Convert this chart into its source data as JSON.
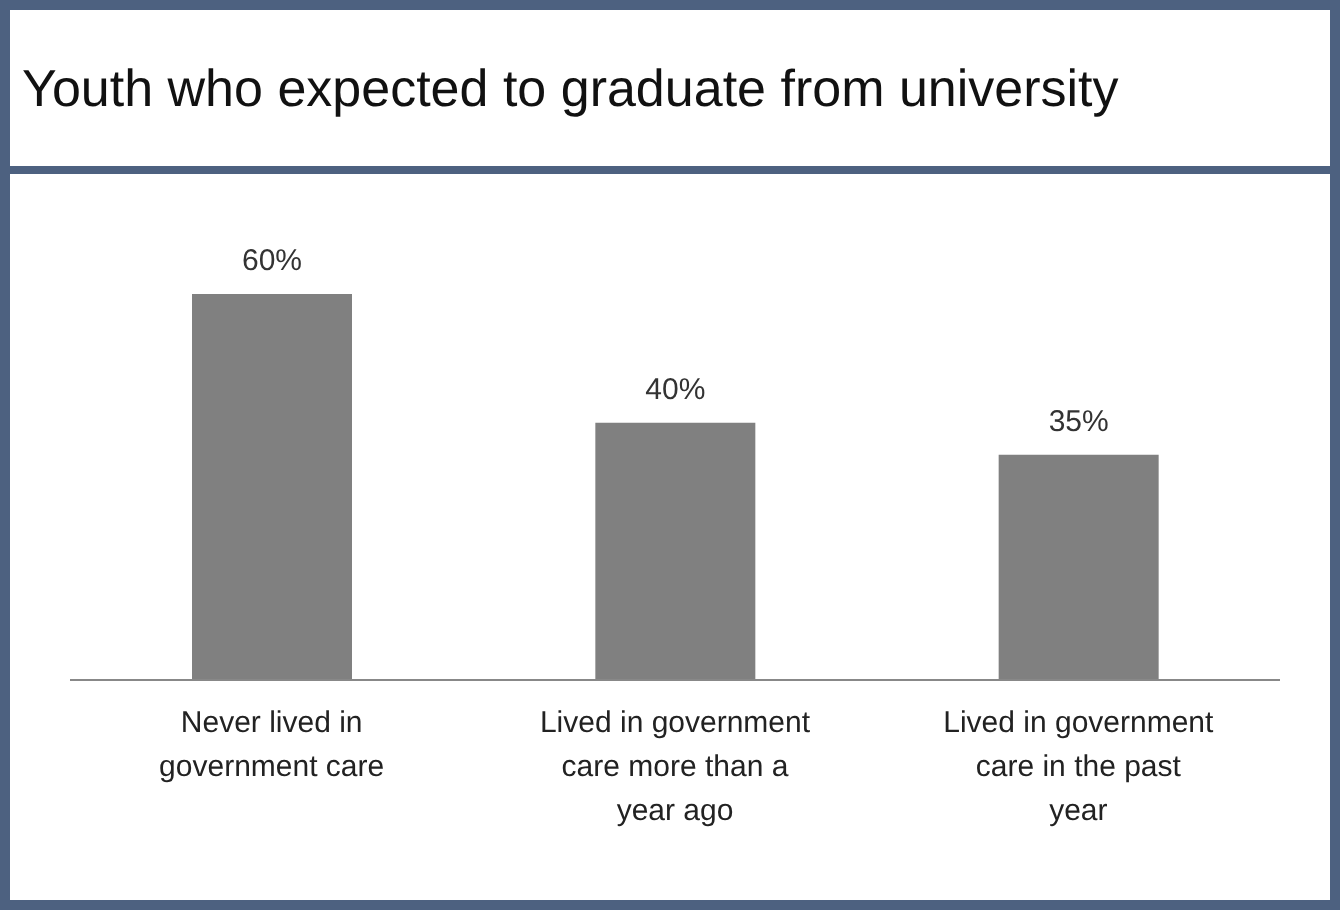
{
  "chart_data": {
    "type": "bar",
    "title": "Youth who expected to graduate from university",
    "categories": [
      "Never lived in government care",
      "Lived in government care more than a year ago",
      "Lived in government care in the past year"
    ],
    "values": [
      60,
      40,
      35
    ],
    "value_labels": [
      "60%",
      "40%",
      "35%"
    ],
    "color": "#808080"
  }
}
